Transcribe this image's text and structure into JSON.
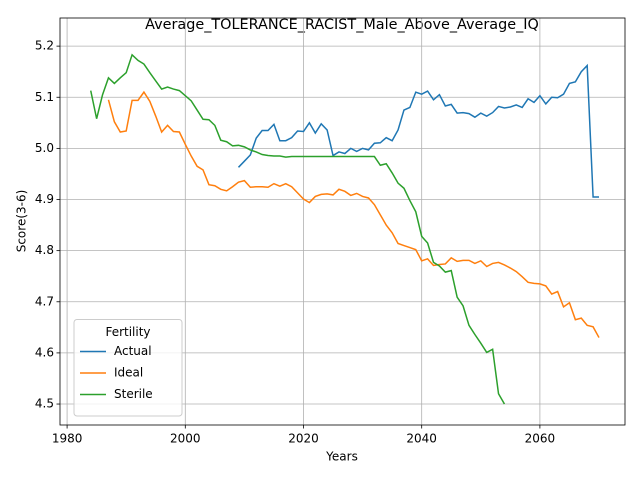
{
  "chart_data": {
    "type": "line",
    "title": "Average_TOLERANCE_RACIST_Male_Above_Average_IQ",
    "x_label": "Years",
    "y_label": "Score(3-6)",
    "xlim": [
      1978.8,
      2074.4
    ],
    "ylim": [
      4.459,
      5.255
    ],
    "xticks": [
      1980,
      2000,
      2020,
      2040,
      2060
    ],
    "yticks": [
      4.5,
      4.6,
      4.7,
      4.8,
      4.9,
      {
        "value": 5,
        "label": "5.0"
      },
      5.1,
      5.2
    ],
    "grid": true,
    "legend_title": "Fertility",
    "legend_position": "lower-left",
    "series": [
      {
        "name": "Actual",
        "color": "#1f77b4",
        "x": [
          2009,
          2010,
          2011,
          2012,
          2013,
          2014,
          2015,
          2016,
          2017,
          2018,
          2019,
          2020,
          2021,
          2022,
          2023,
          2024,
          2025,
          2026,
          2027,
          2028,
          2029,
          2030,
          2031,
          2032,
          2033,
          2034,
          2035,
          2036,
          2037,
          2038,
          2039,
          2040,
          2041,
          2042,
          2043,
          2044,
          2045,
          2046,
          2047,
          2048,
          2049,
          2050,
          2051,
          2052,
          2053,
          2054,
          2055,
          2056,
          2057,
          2058,
          2059,
          2060,
          2061,
          2062,
          2063,
          2064,
          2065,
          2066,
          2067,
          2068,
          2069,
          2070
        ],
        "values": [
          4.963,
          4.975,
          4.987,
          5.02,
          5.035,
          5.035,
          5.047,
          5.015,
          5.015,
          5.021,
          5.034,
          5.033,
          5.05,
          5.03,
          5.048,
          5.036,
          4.986,
          4.993,
          4.99,
          5.0,
          4.994,
          5.0,
          4.997,
          5.01,
          5.011,
          5.021,
          5.015,
          5.036,
          5.075,
          5.08,
          5.11,
          5.106,
          5.112,
          5.095,
          5.105,
          5.083,
          5.086,
          5.069,
          5.07,
          5.068,
          5.061,
          5.069,
          5.063,
          5.07,
          5.082,
          5.079,
          5.081,
          5.085,
          5.08,
          5.097,
          5.09,
          5.103,
          5.087,
          5.1,
          5.099,
          5.106,
          5.127,
          5.13,
          5.15,
          5.162,
          4.905,
          4.905
        ]
      },
      {
        "name": "Ideal",
        "color": "#ff7f0e",
        "x": [
          1987,
          1988,
          1989,
          1990,
          1991,
          1992,
          1993,
          1994,
          1995,
          1996,
          1997,
          1998,
          1999,
          2000,
          2001,
          2002,
          2003,
          2004,
          2005,
          2006,
          2007,
          2008,
          2009,
          2010,
          2011,
          2012,
          2013,
          2014,
          2015,
          2016,
          2017,
          2018,
          2019,
          2020,
          2021,
          2022,
          2023,
          2024,
          2025,
          2026,
          2027,
          2028,
          2029,
          2030,
          2031,
          2032,
          2033,
          2034,
          2035,
          2036,
          2037,
          2038,
          2039,
          2040,
          2041,
          2042,
          2043,
          2044,
          2045,
          2046,
          2047,
          2048,
          2049,
          2050,
          2051,
          2052,
          2053,
          2054,
          2055,
          2056,
          2057,
          2058,
          2059,
          2060,
          2061,
          2062,
          2063,
          2064,
          2065,
          2066,
          2067,
          2068,
          2069,
          2070
        ],
        "values": [
          5.095,
          5.052,
          5.032,
          5.034,
          5.094,
          5.094,
          5.11,
          5.092,
          5.063,
          5.032,
          5.045,
          5.033,
          5.032,
          5.008,
          4.985,
          4.965,
          4.958,
          4.929,
          4.927,
          4.92,
          4.917,
          4.925,
          4.934,
          4.937,
          4.924,
          4.925,
          4.925,
          4.924,
          4.931,
          4.926,
          4.931,
          4.925,
          4.913,
          4.901,
          4.894,
          4.906,
          4.91,
          4.911,
          4.909,
          4.92,
          4.916,
          4.908,
          4.912,
          4.906,
          4.903,
          4.89,
          4.87,
          4.85,
          4.835,
          4.814,
          4.81,
          4.806,
          4.802,
          4.78,
          4.784,
          4.771,
          4.773,
          4.774,
          4.786,
          4.779,
          4.781,
          4.781,
          4.775,
          4.78,
          4.769,
          4.775,
          4.777,
          4.772,
          4.766,
          4.759,
          4.749,
          4.738,
          4.736,
          4.735,
          4.731,
          4.715,
          4.72,
          4.69,
          4.698,
          4.665,
          4.668,
          4.654,
          4.651,
          4.63
        ]
      },
      {
        "name": "Sterile",
        "color": "#2ca02c",
        "x": [
          1984,
          1985,
          1986,
          1987,
          1988,
          1989,
          1990,
          1991,
          1992,
          1993,
          1994,
          1995,
          1996,
          1997,
          1998,
          1999,
          2000,
          2001,
          2002,
          2003,
          2004,
          2005,
          2006,
          2007,
          2008,
          2009,
          2010,
          2011,
          2012,
          2013,
          2014,
          2015,
          2016,
          2017,
          2018,
          2019,
          2020,
          2021,
          2022,
          2023,
          2024,
          2025,
          2026,
          2027,
          2028,
          2029,
          2030,
          2031,
          2032,
          2033,
          2034,
          2035,
          2036,
          2037,
          2038,
          2039,
          2040,
          2041,
          2042,
          2043,
          2044,
          2045,
          2046,
          2047,
          2048,
          2049,
          2050,
          2051,
          2052,
          2053,
          2054
        ],
        "values": [
          5.113,
          5.058,
          5.105,
          5.138,
          5.127,
          5.138,
          5.148,
          5.183,
          5.172,
          5.165,
          5.148,
          5.132,
          5.116,
          5.12,
          5.116,
          5.113,
          5.103,
          5.093,
          5.075,
          5.057,
          5.056,
          5.045,
          5.016,
          5.013,
          5.005,
          5.006,
          5.003,
          4.997,
          4.993,
          4.988,
          4.986,
          4.985,
          4.985,
          4.983,
          4.984,
          4.984,
          4.984,
          4.984,
          4.984,
          4.984,
          4.984,
          4.984,
          4.984,
          4.984,
          4.984,
          4.984,
          4.984,
          4.984,
          4.984,
          4.967,
          4.97,
          4.952,
          4.932,
          4.922,
          4.898,
          4.876,
          4.828,
          4.815,
          4.777,
          4.77,
          4.758,
          4.761,
          4.709,
          4.692,
          4.654,
          4.636,
          4.619,
          4.601,
          4.607,
          4.52,
          4.5
        ]
      }
    ]
  }
}
